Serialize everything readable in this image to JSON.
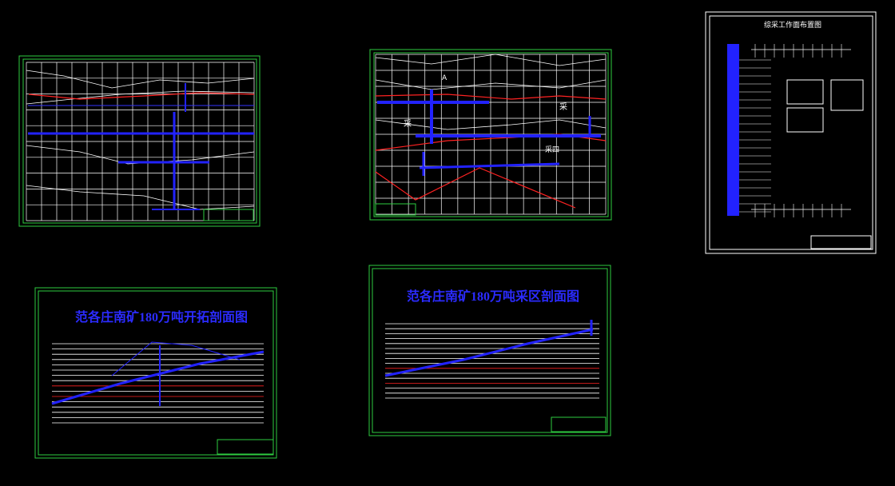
{
  "sheets": [
    {
      "title": null
    },
    {
      "labels": [
        "A",
        "采",
        "采",
        "采四"
      ]
    },
    {
      "title": "综采工作面布置图"
    },
    {
      "title": "范各庄南矿180万吨开拓剖面图"
    },
    {
      "title": "范各庄南矿180万吨采区剖面图"
    }
  ]
}
